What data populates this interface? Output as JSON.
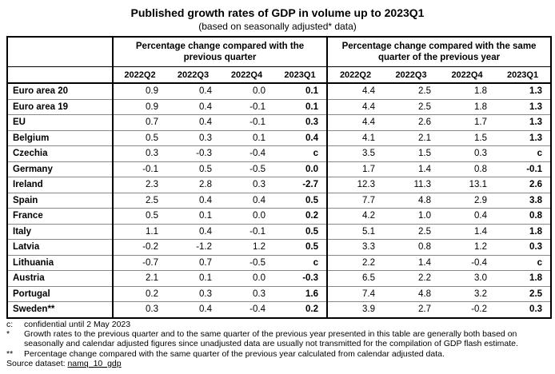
{
  "header": {
    "title": "Published growth rates of GDP in volume up to 2023Q1",
    "subtitle": "(based on seasonally adjusted* data)"
  },
  "table": {
    "groups": [
      "Percentage change compared with the previous quarter",
      "Percentage change compared with the same quarter of the previous year"
    ],
    "columns": [
      "2022Q2",
      "2022Q3",
      "2022Q4",
      "2023Q1",
      "2022Q2",
      "2022Q3",
      "2022Q4",
      "2023Q1"
    ],
    "rows": [
      [
        "Euro area 20",
        "0.9",
        "0.4",
        "0.0",
        "0.1",
        "4.4",
        "2.5",
        "1.8",
        "1.3"
      ],
      [
        "Euro area 19",
        "0.9",
        "0.4",
        "-0.1",
        "0.1",
        "4.4",
        "2.5",
        "1.8",
        "1.3"
      ],
      [
        "EU",
        "0.7",
        "0.4",
        "-0.1",
        "0.3",
        "4.4",
        "2.6",
        "1.7",
        "1.3"
      ],
      [
        "Belgium",
        "0.5",
        "0.3",
        "0.1",
        "0.4",
        "4.1",
        "2.1",
        "1.5",
        "1.3"
      ],
      [
        "Czechia",
        "0.3",
        "-0.3",
        "-0.4",
        "c",
        "3.5",
        "1.5",
        "0.3",
        "c"
      ],
      [
        "Germany",
        "-0.1",
        "0.5",
        "-0.5",
        "0.0",
        "1.7",
        "1.4",
        "0.8",
        "-0.1"
      ],
      [
        "Ireland",
        "2.3",
        "2.8",
        "0.3",
        "-2.7",
        "12.3",
        "11.3",
        "13.1",
        "2.6"
      ],
      [
        "Spain",
        "2.5",
        "0.4",
        "0.4",
        "0.5",
        "7.7",
        "4.8",
        "2.9",
        "3.8"
      ],
      [
        "France",
        "0.5",
        "0.1",
        "0.0",
        "0.2",
        "4.2",
        "1.0",
        "0.4",
        "0.8"
      ],
      [
        "Italy",
        "1.1",
        "0.4",
        "-0.1",
        "0.5",
        "5.1",
        "2.5",
        "1.4",
        "1.8"
      ],
      [
        "Latvia",
        "-0.2",
        "-1.2",
        "1.2",
        "0.5",
        "3.3",
        "0.8",
        "1.2",
        "0.3"
      ],
      [
        "Lithuania",
        "-0.7",
        "0.7",
        "-0.5",
        "c",
        "2.2",
        "1.4",
        "-0.4",
        "c"
      ],
      [
        "Austria",
        "2.1",
        "0.1",
        "0.0",
        "-0.3",
        "6.5",
        "2.2",
        "3.0",
        "1.8"
      ],
      [
        "Portugal",
        "0.2",
        "0.3",
        "0.3",
        "1.6",
        "7.4",
        "4.8",
        "3.2",
        "2.5"
      ],
      [
        "Sweden**",
        "0.3",
        "0.4",
        "-0.4",
        "0.2",
        "3.9",
        "2.7",
        "-0.2",
        "0.3"
      ]
    ]
  },
  "notes": [
    {
      "mark": "c:",
      "text": "confidential until 2 May 2023"
    },
    {
      "mark": "*",
      "text": "Growth rates to the previous quarter and to the same quarter of the previous year presented in this table are generally both based on seasonally and calendar adjusted figures since unadjusted data are usually not transmitted for the compilation of GDP flash estimate."
    },
    {
      "mark": "**",
      "text": "Percentage change compared with the same quarter of the previous year calculated from calendar adjusted data."
    }
  ],
  "source": {
    "label": "Source dataset:",
    "link": "namq_10_gdp"
  }
}
